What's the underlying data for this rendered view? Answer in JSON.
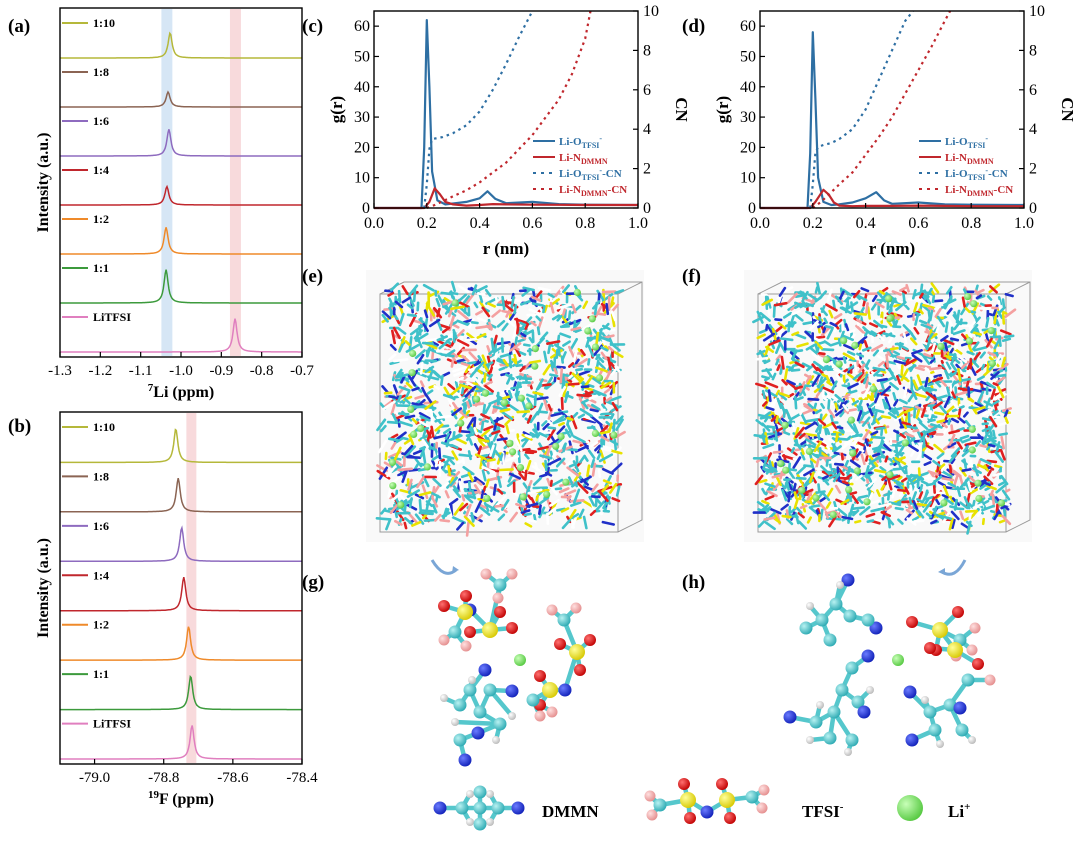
{
  "panel_letters": {
    "a": "(a)",
    "b": "(b)",
    "c": "(c)",
    "d": "(d)",
    "e": "(e)",
    "f": "(f)",
    "g": "(g)",
    "h": "(h)"
  },
  "legend": {
    "dmmn": "DMMN",
    "tfsi": "TFSI",
    "tfsi_sup": "-",
    "li": "Li",
    "li_sup": "+"
  },
  "colors": {
    "li_o": "#2e6fa3",
    "li_n": "#c0272d",
    "highlight_blue": "#cfe2f3",
    "highlight_pink": "#f7d3d6"
  },
  "chart_data": [
    {
      "id": "a",
      "type": "line",
      "ylabel": "Intensity (a.u.)",
      "xlabel_sup": "7",
      "xlabel_main": "Li (ppm)",
      "xlim": [
        -1.3,
        -0.7
      ],
      "xticks": [
        "-1.3",
        "-1.2",
        "-1.1",
        "-1.0",
        "-0.9",
        "-0.8",
        "-0.7"
      ],
      "highlights": [
        {
          "center": -1.035,
          "color": "#cfe2f3"
        },
        {
          "center": -0.865,
          "color": "#f7d3d6"
        }
      ],
      "series": [
        {
          "name": "1:10",
          "color": "#b5b83a",
          "peak": -1.027,
          "height": 0.75
        },
        {
          "name": "1:8",
          "color": "#8b6453",
          "peak": -1.032,
          "height": 0.45
        },
        {
          "name": "1:6",
          "color": "#8e6bbf",
          "peak": -1.03,
          "height": 0.8
        },
        {
          "name": "1:4",
          "color": "#c0272d",
          "peak": -1.035,
          "height": 0.55
        },
        {
          "name": "1:2",
          "color": "#ef8a2a",
          "peak": -1.037,
          "height": 0.8
        },
        {
          "name": "1:1",
          "color": "#3c9a3c",
          "peak": -1.037,
          "height": 1.0
        },
        {
          "name": "LiTFSI",
          "color": "#e07fbf",
          "peak": -0.866,
          "height": 1.0
        }
      ]
    },
    {
      "id": "b",
      "type": "line",
      "ylabel": "Intensity (a.u.)",
      "xlabel_sup": "19",
      "xlabel_main": "F (ppm)",
      "xlim": [
        -79.1,
        -78.4
      ],
      "xticks": [
        "-79.0",
        "-78.8",
        "-78.6",
        "-78.4"
      ],
      "highlights": [
        {
          "center": -78.72,
          "color": "#f7d3d6"
        }
      ],
      "series": [
        {
          "name": "1:10",
          "color": "#b5b83a",
          "peak": -78.765,
          "height": 1.0
        },
        {
          "name": "1:8",
          "color": "#8b6453",
          "peak": -78.758,
          "height": 1.0
        },
        {
          "name": "1:6",
          "color": "#8e6bbf",
          "peak": -78.748,
          "height": 1.0
        },
        {
          "name": "1:4",
          "color": "#c0272d",
          "peak": -78.742,
          "height": 1.0
        },
        {
          "name": "1:2",
          "color": "#ef8a2a",
          "peak": -78.728,
          "height": 1.0
        },
        {
          "name": "1:1",
          "color": "#3c9a3c",
          "peak": -78.722,
          "height": 1.0
        },
        {
          "name": "LiTFSI",
          "color": "#e07fbf",
          "peak": -78.718,
          "height": 1.0
        }
      ]
    },
    {
      "id": "c",
      "type": "line",
      "xlabel": "r (nm)",
      "ylabel": "g(r)",
      "ylabel2": "CN",
      "xlim": [
        0.0,
        1.0
      ],
      "ylim": [
        0,
        65
      ],
      "y2lim": [
        0,
        10
      ],
      "xticks": [
        "0.0",
        "0.2",
        "0.4",
        "0.6",
        "0.8",
        "1.0"
      ],
      "yticks": [
        "0",
        "10",
        "20",
        "30",
        "40",
        "50",
        "60"
      ],
      "y2ticks": [
        "0",
        "2",
        "4",
        "6",
        "8",
        "10"
      ],
      "series": [
        {
          "name": "Li-O",
          "sub": "TFSI",
          "sup": "-",
          "suffix": "",
          "color": "#2e6fa3",
          "style": "solid",
          "axis": "left",
          "x": [
            0.0,
            0.18,
            0.19,
            0.2,
            0.21,
            0.22,
            0.24,
            0.27,
            0.3,
            0.35,
            0.4,
            0.43,
            0.46,
            0.5,
            0.6,
            0.7,
            0.8,
            1.0
          ],
          "y": [
            0,
            0,
            20,
            62,
            40,
            12,
            2.5,
            1.2,
            1.5,
            2.0,
            3.2,
            5.5,
            3.0,
            1.6,
            2.0,
            1.3,
            1.1,
            1.0
          ]
        },
        {
          "name": "Li-N",
          "sub": "DMMN",
          "sup": "",
          "suffix": "",
          "color": "#c0272d",
          "style": "solid",
          "axis": "left",
          "x": [
            0.0,
            0.19,
            0.21,
            0.23,
            0.25,
            0.27,
            0.3,
            0.35,
            0.4,
            0.45,
            0.5,
            0.6,
            0.7,
            0.8,
            1.0
          ],
          "y": [
            0,
            0,
            2.0,
            6.5,
            4.5,
            2.0,
            1.2,
            0.8,
            1.0,
            1.3,
            1.2,
            1.1,
            1.05,
            1.0,
            1.0
          ]
        },
        {
          "name": "Li-O",
          "sub": "TFSI",
          "sup": "-",
          "suffix": "-CN",
          "color": "#2e6fa3",
          "style": "dotted",
          "axis": "right",
          "x": [
            0.19,
            0.2,
            0.21,
            0.22,
            0.24,
            0.26,
            0.3,
            0.35,
            0.4,
            0.45,
            0.5,
            0.55,
            0.6
          ],
          "y": [
            0.0,
            1.2,
            3.0,
            3.5,
            3.55,
            3.6,
            3.8,
            4.2,
            4.9,
            6.0,
            7.3,
            8.7,
            10.0
          ]
        },
        {
          "name": "Li-N",
          "sub": "DMMN",
          "sup": "",
          "suffix": "-CN",
          "color": "#c0272d",
          "style": "dotted",
          "axis": "right",
          "x": [
            0.2,
            0.23,
            0.27,
            0.3,
            0.35,
            0.4,
            0.5,
            0.6,
            0.7,
            0.75,
            0.8,
            0.82
          ],
          "y": [
            0.0,
            0.15,
            0.4,
            0.6,
            0.9,
            1.3,
            2.3,
            3.7,
            5.5,
            6.8,
            8.6,
            10.0
          ]
        }
      ]
    },
    {
      "id": "d",
      "type": "line",
      "xlabel": "r (nm)",
      "ylabel": "g(r)",
      "ylabel2": "CN",
      "xlim": [
        0.0,
        1.0
      ],
      "ylim": [
        0,
        65
      ],
      "y2lim": [
        0,
        10
      ],
      "xticks": [
        "0.0",
        "0.2",
        "0.4",
        "0.6",
        "0.8",
        "1.0"
      ],
      "yticks": [
        "0",
        "10",
        "20",
        "30",
        "40",
        "50",
        "60"
      ],
      "y2ticks": [
        "0",
        "2",
        "4",
        "6",
        "8",
        "10"
      ],
      "series": [
        {
          "name": "Li-O",
          "sub": "TFSI",
          "sup": "-",
          "suffix": "",
          "color": "#2e6fa3",
          "style": "solid",
          "axis": "left",
          "x": [
            0.0,
            0.18,
            0.19,
            0.2,
            0.21,
            0.22,
            0.24,
            0.27,
            0.3,
            0.35,
            0.4,
            0.44,
            0.47,
            0.5,
            0.6,
            0.7,
            0.8,
            1.0
          ],
          "y": [
            0,
            0,
            18,
            58,
            36,
            10,
            2.0,
            1.0,
            1.2,
            1.8,
            3.2,
            5.2,
            2.5,
            1.4,
            1.8,
            1.2,
            1.1,
            1.0
          ]
        },
        {
          "name": "Li-N",
          "sub": "DMMN",
          "sup": "",
          "suffix": "",
          "color": "#c0272d",
          "style": "solid",
          "axis": "left",
          "x": [
            0.0,
            0.19,
            0.21,
            0.24,
            0.26,
            0.28,
            0.3,
            0.35,
            0.4,
            0.5,
            0.6,
            0.7,
            0.8,
            1.0
          ],
          "y": [
            0,
            0,
            2.0,
            6.0,
            4.5,
            1.8,
            0.8,
            0.6,
            0.7,
            0.7,
            0.8,
            0.7,
            0.6,
            0.6
          ]
        },
        {
          "name": "Li-O",
          "sub": "TFSI",
          "sup": "-",
          "suffix": "-CN",
          "color": "#2e6fa3",
          "style": "dotted",
          "axis": "right",
          "x": [
            0.19,
            0.2,
            0.21,
            0.22,
            0.24,
            0.27,
            0.3,
            0.35,
            0.4,
            0.45,
            0.5,
            0.55,
            0.58
          ],
          "y": [
            0.0,
            1.2,
            2.8,
            3.1,
            3.2,
            3.3,
            3.5,
            4.0,
            5.0,
            6.5,
            8.0,
            9.5,
            10.0
          ]
        },
        {
          "name": "Li-N",
          "sub": "DMMN",
          "sup": "",
          "suffix": "-CN",
          "color": "#c0272d",
          "style": "dotted",
          "axis": "right",
          "x": [
            0.2,
            0.23,
            0.27,
            0.3,
            0.35,
            0.4,
            0.45,
            0.5,
            0.55,
            0.6,
            0.65,
            0.7,
            0.72
          ],
          "y": [
            0.0,
            0.3,
            0.8,
            1.2,
            1.8,
            2.7,
            3.6,
            4.6,
            5.8,
            7.0,
            8.2,
            9.5,
            10.0
          ]
        }
      ]
    }
  ]
}
